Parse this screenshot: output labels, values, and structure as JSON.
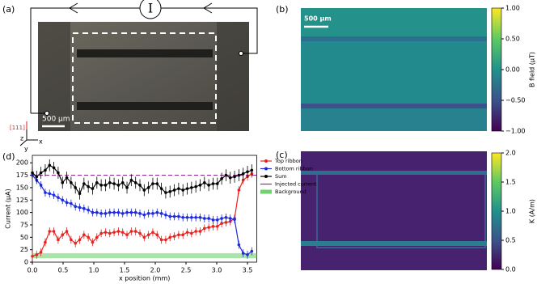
{
  "panels": [
    "(a)",
    "(b)",
    "(c)",
    "(d)"
  ],
  "panel_a": {
    "current_symbol": "I",
    "scalebar_label": "500 µm",
    "direction": "[111]",
    "axes": [
      "z",
      "y",
      "x"
    ]
  },
  "chart_data": [
    {
      "type": "line",
      "xlabel": "x position (mm)",
      "ylabel": "Current (µA)",
      "xlim": [
        0,
        3.65
      ],
      "ylim": [
        0,
        215
      ],
      "xticks": [
        {
          "value": 0,
          "label": "0.0"
        },
        0.5,
        {
          "value": 1,
          "label": "1.0"
        },
        1.5,
        {
          "value": 2,
          "label": "2.0"
        },
        2.5,
        {
          "value": 3,
          "label": "3.0"
        },
        3.5
      ],
      "yticks": [
        0,
        25,
        50,
        75,
        100,
        125,
        150,
        175,
        200
      ],
      "legend": "outside-right",
      "x": [
        0,
        0.07,
        0.14,
        0.21,
        0.28,
        0.35,
        0.42,
        0.49,
        0.56,
        0.63,
        0.7,
        0.77,
        0.84,
        0.91,
        0.98,
        1.05,
        1.12,
        1.19,
        1.26,
        1.33,
        1.4,
        1.47,
        1.54,
        1.61,
        1.68,
        1.75,
        1.82,
        1.89,
        1.96,
        2.03,
        2.1,
        2.17,
        2.24,
        2.31,
        2.38,
        2.45,
        2.52,
        2.59,
        2.66,
        2.73,
        2.8,
        2.87,
        2.94,
        3.01,
        3.08,
        3.15,
        3.22,
        3.29,
        3.36,
        3.43,
        3.5,
        3.57
      ],
      "series": [
        {
          "name": "Top ribbon",
          "color": "#e8231f",
          "error": 8,
          "values": [
            12,
            15,
            20,
            40,
            62,
            62,
            45,
            55,
            62,
            45,
            38,
            45,
            55,
            50,
            40,
            50,
            58,
            60,
            58,
            60,
            62,
            60,
            55,
            62,
            62,
            58,
            50,
            55,
            60,
            55,
            45,
            45,
            50,
            52,
            55,
            55,
            60,
            58,
            62,
            62,
            68,
            70,
            72,
            72,
            78,
            80,
            82,
            88,
            145,
            165,
            172,
            178
          ]
        },
        {
          "name": "Bottom ribbon",
          "color": "#1d2be0",
          "error": 8,
          "values": [
            175,
            165,
            155,
            140,
            138,
            135,
            130,
            125,
            120,
            118,
            112,
            110,
            108,
            105,
            100,
            100,
            98,
            98,
            100,
            100,
            100,
            98,
            100,
            100,
            100,
            98,
            95,
            98,
            98,
            100,
            98,
            95,
            92,
            92,
            92,
            90,
            90,
            90,
            90,
            90,
            88,
            88,
            85,
            85,
            88,
            90,
            88,
            86,
            35,
            18,
            15,
            22
          ]
        },
        {
          "name": "Sum",
          "color": "#000000",
          "error": 12,
          "values": [
            180,
            172,
            180,
            185,
            195,
            190,
            180,
            160,
            170,
            160,
            150,
            138,
            158,
            152,
            148,
            160,
            155,
            155,
            160,
            158,
            155,
            160,
            150,
            165,
            160,
            155,
            145,
            150,
            158,
            158,
            148,
            140,
            142,
            145,
            148,
            145,
            148,
            150,
            152,
            155,
            160,
            155,
            158,
            158,
            168,
            175,
            170,
            172,
            175,
            178,
            182,
            185
          ]
        }
      ],
      "injected": {
        "name": "Injected current",
        "color": "#8b2f8f",
        "value": 175
      },
      "background": {
        "name": "Background",
        "color": "#6fd36f",
        "low": 8,
        "high": 18
      }
    },
    {
      "type": "colorbar",
      "label": "B field (µT)",
      "scalebar_label": "500 µm",
      "colormap": [
        "#440154",
        "#3b528b",
        "#21918c",
        "#5ec962",
        "#fde725"
      ],
      "ylim": [
        -1,
        1
      ],
      "yticks": [
        {
          "value": 1,
          "label": "1.00"
        },
        {
          "value": 0.5,
          "label": "0.50"
        },
        {
          "value": 0,
          "label": "0.00"
        },
        {
          "value": -0.5,
          "label": "−0.50"
        },
        {
          "value": -1,
          "label": "−1.00"
        }
      ]
    },
    {
      "type": "colorbar",
      "label": "K (A/m)",
      "colormap": [
        "#440154",
        "#3b528b",
        "#21918c",
        "#5ec962",
        "#fde725"
      ],
      "ylim": [
        0,
        2
      ],
      "yticks": [
        {
          "value": 0,
          "label": "0.0"
        },
        0.5,
        {
          "value": 1,
          "label": "1.0"
        },
        1.5,
        {
          "value": 2,
          "label": "2.0"
        }
      ]
    }
  ]
}
